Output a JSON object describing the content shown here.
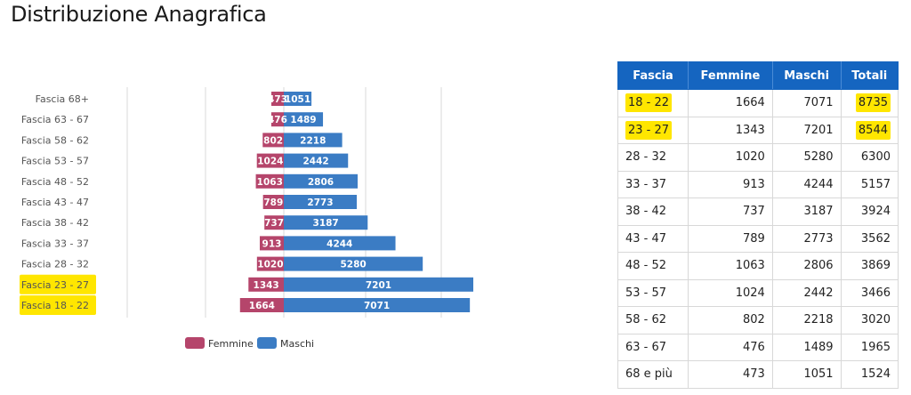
{
  "title": "Distribuzione Anagrafica",
  "colors": {
    "femmine": "#b5456b",
    "maschi": "#3b7cc4",
    "header": "#1565c0",
    "highlight": "#ffe600",
    "grid": "#d9d9d9"
  },
  "chart_data": {
    "type": "bar",
    "orientation": "horizontal-population-pyramid",
    "categories": [
      "Fascia 68+",
      "Fascia 63 - 67",
      "Fascia 58 - 62",
      "Fascia 53 - 57",
      "Fascia 48 - 52",
      "Fascia 43 - 47",
      "Fascia 38 - 42",
      "Fascia 33 - 37",
      "Fascia 28 - 32",
      "Fascia 23 - 27",
      "Fascia 18 - 22"
    ],
    "highlighted_categories": [
      "Fascia 23 - 27",
      "Fascia 18 - 22"
    ],
    "series": [
      {
        "name": "Femmine",
        "values": [
          473,
          476,
          802,
          1024,
          1063,
          789,
          737,
          913,
          1020,
          1343,
          1664
        ]
      },
      {
        "name": "Maschi",
        "values": [
          1051,
          1489,
          2218,
          2442,
          2806,
          2773,
          3187,
          4244,
          5280,
          7201,
          7071
        ]
      }
    ],
    "legend": [
      "Femmine",
      "Maschi"
    ],
    "legend_position": "bottom",
    "grid": true,
    "xlim": [
      -4400,
      8000
    ]
  },
  "table": {
    "headers": [
      "Fascia",
      "Femmine",
      "Maschi",
      "Totali"
    ],
    "rows": [
      [
        "18 - 22",
        "1664",
        "7071",
        "8735"
      ],
      [
        "23 - 27",
        "1343",
        "7201",
        "8544"
      ],
      [
        "28 - 32",
        "1020",
        "5280",
        "6300"
      ],
      [
        "33 - 37",
        "913",
        "4244",
        "5157"
      ],
      [
        "38 - 42",
        "737",
        "3187",
        "3924"
      ],
      [
        "43 - 47",
        "789",
        "2773",
        "3562"
      ],
      [
        "48 - 52",
        "1063",
        "2806",
        "3869"
      ],
      [
        "53 - 57",
        "1024",
        "2442",
        "3466"
      ],
      [
        "58 - 62",
        "802",
        "2218",
        "3020"
      ],
      [
        "63 - 67",
        "476",
        "1489",
        "1965"
      ],
      [
        "68 e più",
        "473",
        "1051",
        "1524"
      ]
    ],
    "highlighted_cells": [
      [
        0,
        0
      ],
      [
        0,
        3
      ],
      [
        1,
        0
      ],
      [
        1,
        3
      ]
    ]
  }
}
